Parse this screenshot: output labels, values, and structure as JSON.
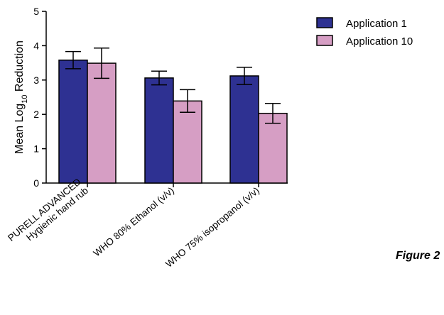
{
  "figure_label": "Figure 2",
  "chart_data": {
    "type": "bar",
    "categories": [
      [
        "PURELL ADVANCED",
        "Hygienic hand rub"
      ],
      [
        "WHO 80% Ethanol (v/v)"
      ],
      [
        "WHO 75% isopropanol (v/v)"
      ]
    ],
    "series": [
      {
        "name": "Application 1",
        "values": [
          3.58,
          3.06,
          3.12
        ],
        "errors": [
          0.25,
          0.2,
          0.25
        ],
        "color": "#2e3192"
      },
      {
        "name": "Application 10",
        "values": [
          3.49,
          2.39,
          2.03
        ],
        "errors": [
          0.44,
          0.33,
          0.29
        ],
        "color": "#d69ec4"
      }
    ],
    "ylabel": "Mean Log10 Reduction",
    "ylabel_parts": {
      "prefix": "Mean Log",
      "subscript": "10",
      "suffix": " Reduction"
    },
    "yticks": [
      0,
      1,
      2,
      3,
      4,
      5
    ],
    "ylim": [
      0,
      5
    ],
    "legend_position": "top-right",
    "grid": false
  }
}
